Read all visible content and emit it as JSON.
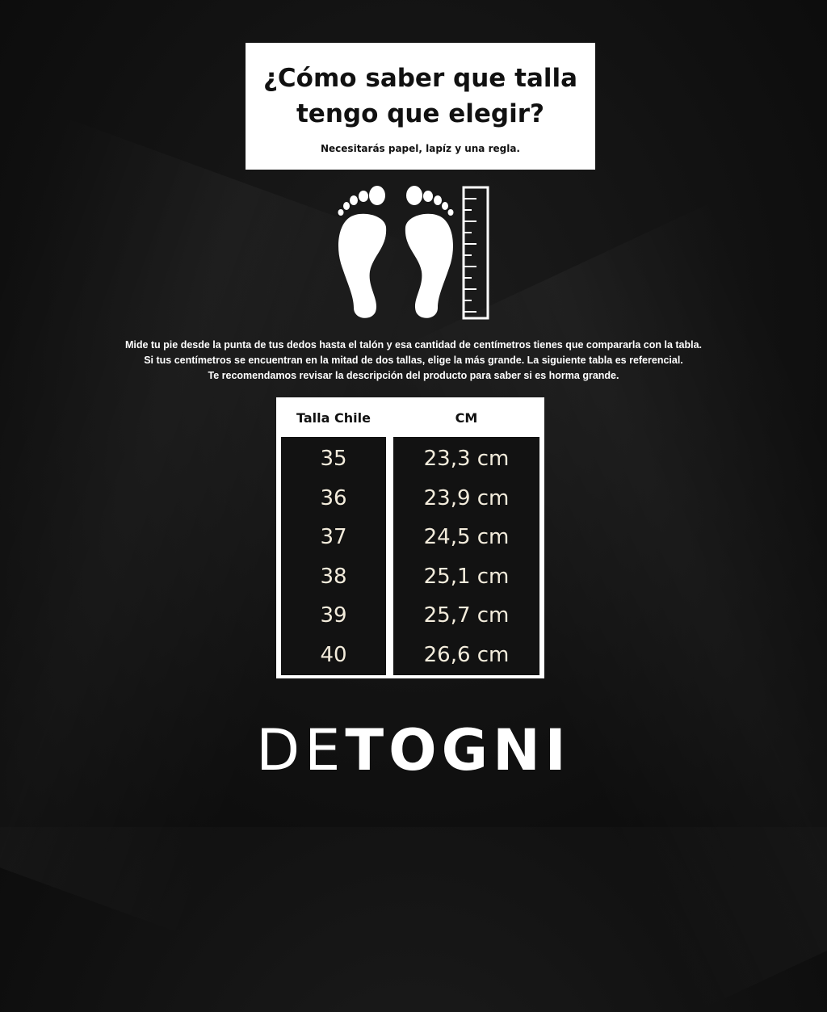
{
  "header": {
    "title_line1": "¿Cómo saber que talla",
    "title_line2": "tengo que elegir?",
    "subtitle": "Necesitarás papel, lapíz y una regla."
  },
  "icons": [
    "left-footprint-icon",
    "right-footprint-icon",
    "ruler-icon"
  ],
  "instructions": [
    "Mide tu pie desde la punta de tus dedos hasta el talón y esa cantidad de centímetros tienes que compararla con la tabla.",
    "Si tus centímetros se encuentran en la mitad de dos tallas, elige la más grande. La siguiente tabla es referencial.",
    "Te recomendamos revisar la descripción del producto para saber si es horma grande."
  ],
  "size_table": {
    "headers": [
      "Talla Chile",
      "CM"
    ],
    "sizes": [
      "35",
      "36",
      "37",
      "38",
      "39",
      "40"
    ],
    "cm": [
      "23,3 cm",
      "23,9 cm",
      "24,5 cm",
      "25,1 cm",
      "25,7 cm",
      "26,6 cm"
    ]
  },
  "brand": {
    "part1": "DE",
    "part2": "TOGNI"
  },
  "colors": {
    "background": "#111111",
    "panel": "#ffffff",
    "cell_text": "#f3ecdc"
  }
}
